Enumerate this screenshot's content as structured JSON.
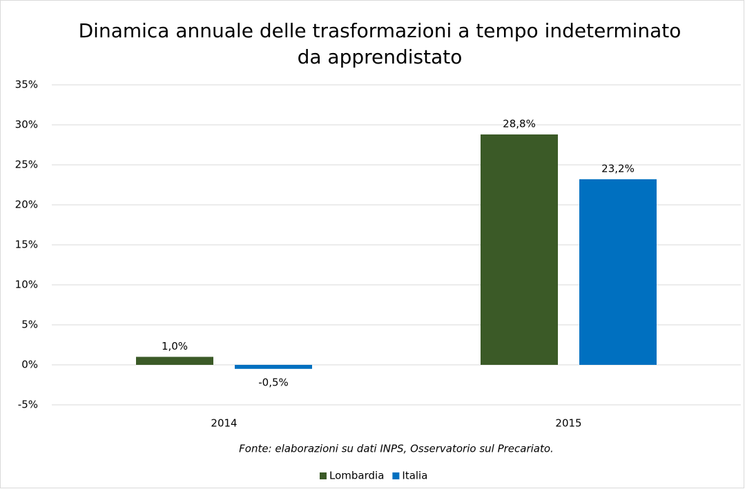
{
  "chart_data": {
    "type": "bar",
    "title": [
      "Dinamica annuale delle trasformazioni a tempo indeterminato",
      "da apprendistato"
    ],
    "categories": [
      "2014",
      "2015"
    ],
    "series": [
      {
        "name": "Lombardia",
        "color": "#3b5a27",
        "values": [
          1.0,
          28.8
        ],
        "value_labels": [
          "1,0%",
          "28,8%"
        ]
      },
      {
        "name": "Italia",
        "color": "#0070c0",
        "values": [
          -0.5,
          23.2
        ],
        "value_labels": [
          "-0,5%",
          "23,2%"
        ]
      }
    ],
    "ylim": [
      -5,
      35
    ],
    "yticks": [
      {
        "value": -5,
        "label": "-5%"
      },
      {
        "value": 0,
        "label": "0%"
      },
      {
        "value": 5,
        "label": "5%"
      },
      {
        "value": 10,
        "label": "10%"
      },
      {
        "value": 15,
        "label": "15%"
      },
      {
        "value": 20,
        "label": "20%"
      },
      {
        "value": 25,
        "label": "25%"
      },
      {
        "value": 30,
        "label": "30%"
      },
      {
        "value": 35,
        "label": "35%"
      }
    ],
    "grid": true,
    "annotation": "Fonte: elaborazioni su dati INPS, Osservatorio sul Precariato.",
    "legend": "bottom"
  }
}
